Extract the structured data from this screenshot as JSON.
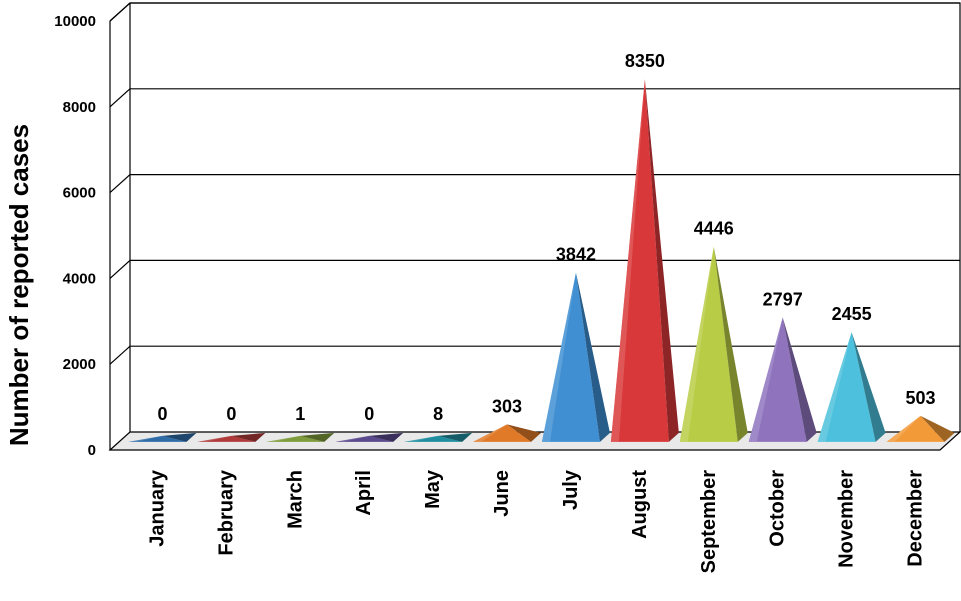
{
  "chart_data": {
    "type": "bar",
    "style": "3d-pyramid",
    "categories": [
      "January",
      "February",
      "March",
      "April",
      "May",
      "June",
      "July",
      "August",
      "September",
      "October",
      "November",
      "December"
    ],
    "values": [
      0,
      0,
      1,
      0,
      8,
      303,
      3842,
      8350,
      4446,
      2797,
      2455,
      503
    ],
    "value_labels": [
      "0",
      "0",
      "1",
      "0",
      "8",
      "303",
      "3842",
      "8350",
      "4446",
      "2797",
      "2455",
      "503"
    ],
    "colors": [
      "#2e6ca8",
      "#b03a3a",
      "#7e9c3c",
      "#5b4a8e",
      "#1f8fa0",
      "#e07a28",
      "#3f8fd2",
      "#d9383a",
      "#b9cc45",
      "#8f74bd",
      "#4cc0dc",
      "#f39a38"
    ],
    "ylabel": "Number of reported cases",
    "ylim": [
      0,
      10000
    ],
    "yticks": [
      "0",
      "2000",
      "4000",
      "6000",
      "8000",
      "10000"
    ],
    "grid": true,
    "legend": "none"
  }
}
